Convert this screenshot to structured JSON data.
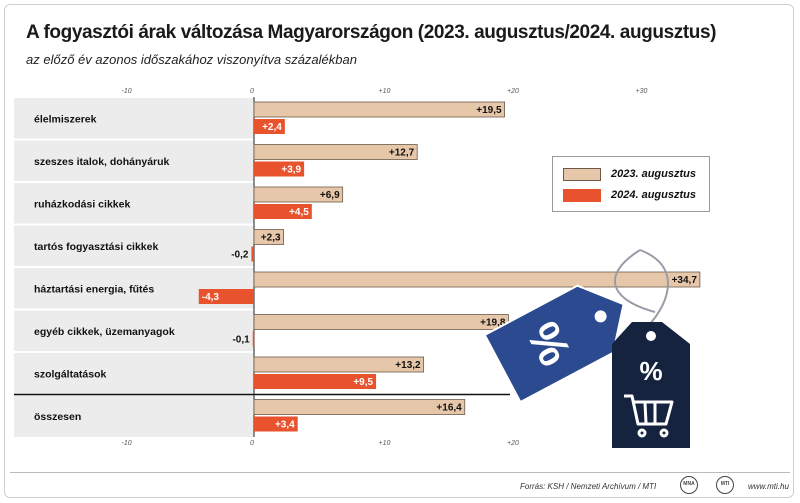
{
  "header": {
    "title": "A fogyasztói árak változása Magyarországon (2023. augusztus/2024. augusztus)",
    "subtitle": "az előző év azonos időszakához viszonyítva százalékban"
  },
  "chart_data": {
    "type": "bar",
    "orientation": "horizontal",
    "categories": [
      "élelmiszerek",
      "szeszes italok, dohányáruk",
      "ruházkodási cikkek",
      "tartós fogyasztási cikkek",
      "háztartási energia, fűtés",
      "egyéb cikkek, üzemanyagok",
      "szolgáltatások",
      "összesen"
    ],
    "series": [
      {
        "name": "2023. augusztus",
        "values": [
          19.5,
          12.7,
          6.9,
          2.3,
          34.7,
          19.8,
          13.2,
          16.4
        ],
        "labels": [
          "+19,5",
          "+12,7",
          "+6,9",
          "+2,3",
          "+34,7",
          "+19,8",
          "+13,2",
          "+16,4"
        ],
        "color": "#e7c7a9"
      },
      {
        "name": "2024. augusztus",
        "values": [
          2.4,
          3.9,
          4.5,
          -0.2,
          -4.3,
          -0.1,
          9.5,
          3.4
        ],
        "labels": [
          "+2,4",
          "+3,9",
          "+4,5",
          "-0,2",
          "-4,3",
          "-0,1",
          "+9,5",
          "+3,4"
        ],
        "color": "#e8532d"
      }
    ],
    "xlim": [
      -10,
      30
    ],
    "top_ticks": [
      {
        "value": -10,
        "label": "-10"
      },
      {
        "value": 0,
        "label": "0"
      },
      {
        "value": 10,
        "label": "+10"
      },
      {
        "value": 20,
        "label": "+20"
      },
      {
        "value": 30,
        "label": "+30"
      }
    ],
    "bottom_ticks": [
      {
        "value": -10,
        "label": "-10"
      },
      {
        "value": 0,
        "label": "0"
      },
      {
        "value": 10,
        "label": "+10"
      },
      {
        "value": 20,
        "label": "+20"
      }
    ],
    "legend_position": "right",
    "grid": false
  },
  "decoration": {
    "tag_left_symbol": "%",
    "tag_right_symbol": "%",
    "icon": "shopping-cart-icon",
    "tag_left_color": "#2c4a8f",
    "tag_right_color": "#16233f"
  },
  "footer": {
    "source": "Forrás: KSH / Nemzeti Archívum / MTI",
    "badge_mna": "MNA",
    "badge_mti": "MTI",
    "site": "www.mti.hu"
  }
}
